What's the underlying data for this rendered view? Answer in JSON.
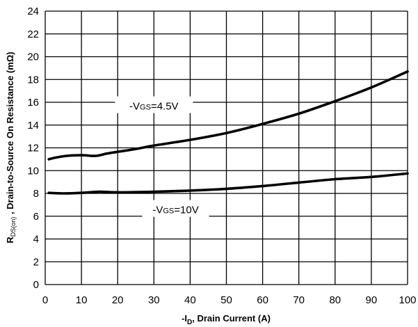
{
  "chart_data": {
    "type": "line",
    "xlabel_prefix": "-I",
    "xlabel_sub": "D",
    "xlabel_suffix": ", Drain Current (A)",
    "ylabel_main": "R",
    "ylabel_sub": "DS(on)",
    "ylabel_suffix": " , Drain-to-Source On Resistance (mΩ)",
    "xlim": [
      0,
      100
    ],
    "ylim": [
      0,
      24
    ],
    "x_ticks": [
      0,
      10,
      20,
      30,
      40,
      50,
      60,
      70,
      80,
      90,
      100
    ],
    "y_ticks": [
      0,
      2,
      4,
      6,
      8,
      10,
      12,
      14,
      16,
      18,
      20,
      22,
      24
    ],
    "grid": true,
    "series": [
      {
        "x": [
          1,
          3,
          6,
          10,
          14,
          17,
          20,
          25,
          30,
          40,
          50,
          60,
          70,
          80,
          90,
          100
        ],
        "y": [
          11.0,
          11.15,
          11.3,
          11.35,
          11.3,
          11.5,
          11.65,
          11.9,
          12.2,
          12.7,
          13.3,
          14.1,
          15.0,
          16.1,
          17.3,
          18.7
        ]
      },
      {
        "x": [
          1,
          5,
          10,
          15,
          20,
          30,
          40,
          50,
          60,
          70,
          80,
          90,
          100
        ],
        "y": [
          8.05,
          8.0,
          8.05,
          8.15,
          8.1,
          8.15,
          8.25,
          8.4,
          8.65,
          8.95,
          9.25,
          9.45,
          9.75
        ]
      }
    ],
    "annotations": [
      {
        "prefix": "-V",
        "sub": "GS",
        "suffix": "=4.5V",
        "x": 30,
        "y": 15.6
      },
      {
        "prefix": "-V",
        "sub": "GS",
        "suffix": "=10V",
        "x": 36,
        "y": 6.5
      }
    ]
  }
}
